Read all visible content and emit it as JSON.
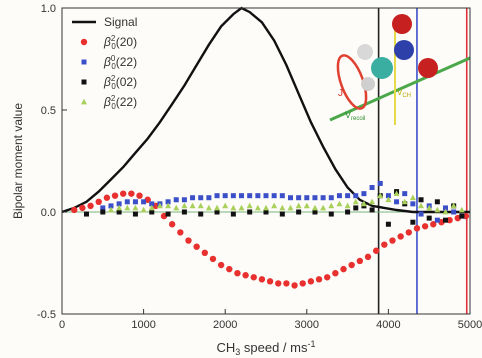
{
  "chart_data": {
    "type": "scatter",
    "xlabel": "CH",
    "xlabel_sub": "3",
    "xlabel_tail": " speed / ms",
    "xlabel_sup": "-1",
    "ylabel": "Bipolar moment value",
    "xlim": [
      0,
      5000
    ],
    "ylim": [
      -0.5,
      1.0
    ],
    "x_ticks": [
      0,
      1000,
      2000,
      3000,
      4000,
      5000
    ],
    "y_ticks": [
      -0.5,
      0.0,
      0.5,
      1.0
    ],
    "x_tick_labels": [
      "0",
      "1000",
      "2000",
      "3000",
      "4000",
      "5000"
    ],
    "y_tick_labels": [
      "-0.5",
      "0.0",
      "0.5",
      "1.0"
    ],
    "grid": false,
    "legend_position": "top-left",
    "vertical_lines": [
      {
        "x": 3880,
        "color": "#222222"
      },
      {
        "x": 4350,
        "color": "#3a4fc8"
      },
      {
        "x": 4960,
        "color": "#e0303a"
      }
    ],
    "inset_labels": [
      "J",
      "V",
      "recoil",
      "V",
      "CH"
    ],
    "series": [
      {
        "name": "Signal",
        "style": "line",
        "color": "#111111",
        "x": [
          0,
          150,
          300,
          450,
          600,
          750,
          900,
          1050,
          1200,
          1350,
          1500,
          1650,
          1800,
          1950,
          2100,
          2200,
          2300,
          2450,
          2600,
          2750,
          2900,
          3050,
          3200,
          3350,
          3500,
          3650,
          3800,
          3950,
          4100,
          4300,
          4500,
          4700,
          5000
        ],
        "y": [
          0.0,
          0.02,
          0.05,
          0.1,
          0.16,
          0.22,
          0.29,
          0.36,
          0.44,
          0.53,
          0.62,
          0.72,
          0.82,
          0.91,
          0.97,
          1.0,
          0.98,
          0.93,
          0.84,
          0.72,
          0.58,
          0.44,
          0.32,
          0.21,
          0.12,
          0.06,
          0.03,
          0.02,
          0.01,
          0.0,
          0.0,
          0.0,
          0.0
        ]
      },
      {
        "name": "β²₀(20)",
        "label_base": "β",
        "label_sup": "2",
        "label_sub": "0",
        "label_tail": "(20)",
        "style": "circle",
        "color": "#e8302f",
        "x": [
          150,
          250,
          350,
          450,
          550,
          650,
          750,
          850,
          950,
          1050,
          1150,
          1250,
          1350,
          1450,
          1550,
          1650,
          1750,
          1850,
          1950,
          2050,
          2150,
          2250,
          2350,
          2450,
          2550,
          2650,
          2750,
          2850,
          2950,
          3050,
          3150,
          3250,
          3350,
          3450,
          3550,
          3650,
          3750,
          3850,
          3950,
          4050,
          4150,
          4250,
          4350,
          4450,
          4550,
          4650,
          4750,
          4850,
          4950
        ],
        "y": [
          0.01,
          0.02,
          0.03,
          0.05,
          0.07,
          0.08,
          0.09,
          0.09,
          0.08,
          0.06,
          0.03,
          -0.02,
          -0.06,
          -0.1,
          -0.14,
          -0.17,
          -0.2,
          -0.23,
          -0.26,
          -0.28,
          -0.3,
          -0.31,
          -0.32,
          -0.33,
          -0.34,
          -0.35,
          -0.35,
          -0.36,
          -0.35,
          -0.34,
          -0.33,
          -0.32,
          -0.3,
          -0.28,
          -0.26,
          -0.24,
          -0.22,
          -0.19,
          -0.16,
          -0.14,
          -0.12,
          -0.1,
          -0.08,
          -0.07,
          -0.06,
          -0.05,
          -0.04,
          -0.03,
          -0.02
        ]
      },
      {
        "name": "β⁰₀(22)",
        "label_base": "β",
        "label_sup": "0",
        "label_sub": "0",
        "label_tail": "(22)",
        "style": "square",
        "color": "#3a4fc8",
        "x": [
          500,
          600,
          700,
          800,
          900,
          1000,
          1100,
          1200,
          1300,
          1400,
          1500,
          1600,
          1700,
          1800,
          1900,
          2000,
          2100,
          2200,
          2300,
          2400,
          2500,
          2600,
          2700,
          2800,
          2900,
          3000,
          3100,
          3200,
          3300,
          3400,
          3500,
          3600,
          3700,
          3800,
          3900,
          4000,
          4100,
          4200,
          4300,
          4400,
          4500,
          4600,
          4700,
          4800,
          4900
        ],
        "y": [
          0.02,
          0.03,
          0.04,
          0.05,
          0.05,
          0.05,
          0.04,
          0.04,
          0.05,
          0.06,
          0.06,
          0.07,
          0.07,
          0.07,
          0.08,
          0.08,
          0.08,
          0.08,
          0.08,
          0.08,
          0.08,
          0.08,
          0.08,
          0.07,
          0.07,
          0.07,
          0.07,
          0.07,
          0.07,
          0.08,
          0.08,
          0.08,
          0.09,
          0.12,
          0.14,
          0.08,
          0.05,
          0.09,
          0.04,
          -0.01,
          0.03,
          -0.04,
          0.02,
          0.0,
          -0.02
        ]
      },
      {
        "name": "β²₀(02)",
        "label_base": "β",
        "label_sup": "2",
        "label_sub": "0",
        "label_tail": "(02)",
        "style": "square",
        "color": "#111111",
        "x": [
          300,
          500,
          700,
          900,
          1100,
          1300,
          1500,
          1700,
          1900,
          2100,
          2300,
          2500,
          2700,
          2900,
          3100,
          3300,
          3500,
          3600,
          3700,
          3800,
          3900,
          4000,
          4100,
          4200,
          4300,
          4400,
          4500,
          4600,
          4700,
          4800,
          4900
        ],
        "y": [
          -0.01,
          0.0,
          0.0,
          -0.01,
          0.0,
          -0.01,
          0.0,
          -0.01,
          0.0,
          -0.01,
          0.0,
          0.0,
          -0.01,
          0.0,
          0.0,
          -0.01,
          0.0,
          0.02,
          0.03,
          0.01,
          0.08,
          -0.06,
          0.1,
          0.04,
          -0.05,
          0.06,
          -0.03,
          0.05,
          -0.04,
          0.03,
          -0.02
        ]
      },
      {
        "name": "β²₀(22)",
        "label_base": "β",
        "label_sup": "2",
        "label_sub": "0",
        "label_tail": "(22)",
        "style": "triangle",
        "color": "#a8d05a",
        "x": [
          600,
          700,
          800,
          900,
          1000,
          1100,
          1200,
          1300,
          1400,
          1500,
          1600,
          1700,
          1800,
          1900,
          2000,
          2100,
          2200,
          2300,
          2400,
          2500,
          2600,
          2700,
          2800,
          2900,
          3000,
          3100,
          3200,
          3300,
          3400,
          3500,
          3600,
          3700,
          3800,
          3900,
          4000,
          4100,
          4200,
          4300,
          4400,
          4500,
          4600,
          4700,
          4800,
          4900
        ],
        "y": [
          0.01,
          0.02,
          0.02,
          0.02,
          0.01,
          0.02,
          0.03,
          0.03,
          0.02,
          0.03,
          0.03,
          0.03,
          0.02,
          0.02,
          0.03,
          0.02,
          0.02,
          0.03,
          0.02,
          0.02,
          0.03,
          0.02,
          0.02,
          0.03,
          0.03,
          0.02,
          0.02,
          0.03,
          0.04,
          0.03,
          0.05,
          0.04,
          0.05,
          0.08,
          0.06,
          0.09,
          0.05,
          0.07,
          0.03,
          0.02,
          0.01,
          0.0,
          0.03,
          0.01
        ]
      }
    ]
  }
}
